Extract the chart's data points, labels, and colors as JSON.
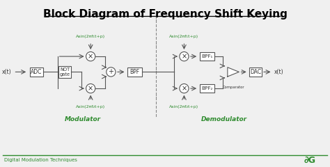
{
  "title": "Block Diagram of Frequency Shift Keying",
  "title_fontsize": 11,
  "bg_color": "#f0f0f0",
  "line_color": "#555555",
  "text_color_green": "#2e8b2e",
  "text_color_dark": "#333333",
  "footer_text": "Digital Modulation Techniques",
  "modulator_label": "Modulator",
  "demodulator_label": "Demodulator",
  "signal_labels": {
    "input": "x(t)",
    "output": "x(t)",
    "asin_top_mod": "Asin(2πf₁t+p)",
    "asin_bot_mod": "Asin(2πf₂t+p)",
    "asin_top_demod": "Asin(2πf₁t+p)",
    "asin_bot_demod": "Asin(2πf₂t+p)",
    "bpf_mod": "BPF",
    "bpf1_demod": "BPF₁",
    "bpf2_demod": "BPF₂",
    "adc": "ADC",
    "not_gate": "NOT\ngate",
    "dac": "DAC",
    "comparator": "Comparator"
  }
}
